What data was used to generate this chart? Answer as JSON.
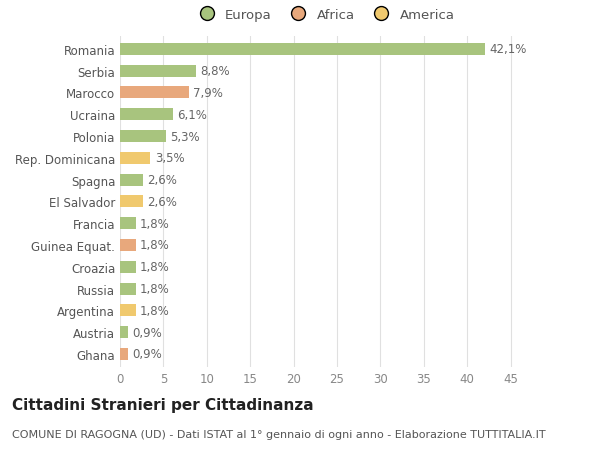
{
  "categories": [
    "Romania",
    "Serbia",
    "Marocco",
    "Ucraina",
    "Polonia",
    "Rep. Dominicana",
    "Spagna",
    "El Salvador",
    "Francia",
    "Guinea Equat.",
    "Croazia",
    "Russia",
    "Argentina",
    "Austria",
    "Ghana"
  ],
  "values": [
    42.1,
    8.8,
    7.9,
    6.1,
    5.3,
    3.5,
    2.6,
    2.6,
    1.8,
    1.8,
    1.8,
    1.8,
    1.8,
    0.9,
    0.9
  ],
  "labels": [
    "42,1%",
    "8,8%",
    "7,9%",
    "6,1%",
    "5,3%",
    "3,5%",
    "2,6%",
    "2,6%",
    "1,8%",
    "1,8%",
    "1,8%",
    "1,8%",
    "1,8%",
    "0,9%",
    "0,9%"
  ],
  "continent": [
    "Europa",
    "Europa",
    "Africa",
    "Europa",
    "Europa",
    "America",
    "Europa",
    "America",
    "Europa",
    "Africa",
    "Europa",
    "Europa",
    "America",
    "Europa",
    "Africa"
  ],
  "colors": {
    "Europa": "#a8c47e",
    "Africa": "#e8a87c",
    "America": "#f0c96e"
  },
  "xlim": [
    0,
    47
  ],
  "xticks": [
    0,
    5,
    10,
    15,
    20,
    25,
    30,
    35,
    40,
    45
  ],
  "title": "Cittadini Stranieri per Cittadinanza",
  "subtitle": "COMUNE DI RAGOGNA (UD) - Dati ISTAT al 1° gennaio di ogni anno - Elaborazione TUTTITALIA.IT",
  "background_color": "#ffffff",
  "grid_color": "#e0e0e0",
  "bar_height": 0.55,
  "label_fontsize": 8.5,
  "tick_fontsize": 8.5,
  "title_fontsize": 11,
  "subtitle_fontsize": 8
}
